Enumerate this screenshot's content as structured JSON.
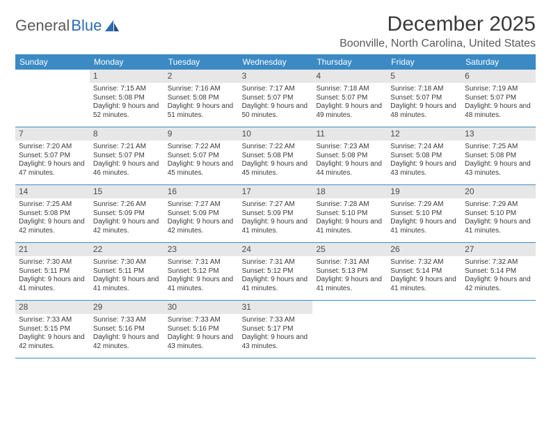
{
  "brand": {
    "part1": "General",
    "part2": "Blue"
  },
  "title": "December 2025",
  "location": "Boonville, North Carolina, United States",
  "colors": {
    "header_bg": "#3b8ac4",
    "header_fg": "#ffffff",
    "daynum_bg": "#e7e7e7",
    "rule": "#3b8ac4",
    "text": "#3a3a3a",
    "logo_gray": "#5a5a5a",
    "logo_blue": "#2d6bb0"
  },
  "daysOfWeek": [
    "Sunday",
    "Monday",
    "Tuesday",
    "Wednesday",
    "Thursday",
    "Friday",
    "Saturday"
  ],
  "weeks": [
    [
      {
        "num": "",
        "sunrise": "",
        "sunset": "",
        "daylight": ""
      },
      {
        "num": "1",
        "sunrise": "7:15 AM",
        "sunset": "5:08 PM",
        "daylight": "9 hours and 52 minutes."
      },
      {
        "num": "2",
        "sunrise": "7:16 AM",
        "sunset": "5:08 PM",
        "daylight": "9 hours and 51 minutes."
      },
      {
        "num": "3",
        "sunrise": "7:17 AM",
        "sunset": "5:07 PM",
        "daylight": "9 hours and 50 minutes."
      },
      {
        "num": "4",
        "sunrise": "7:18 AM",
        "sunset": "5:07 PM",
        "daylight": "9 hours and 49 minutes."
      },
      {
        "num": "5",
        "sunrise": "7:18 AM",
        "sunset": "5:07 PM",
        "daylight": "9 hours and 48 minutes."
      },
      {
        "num": "6",
        "sunrise": "7:19 AM",
        "sunset": "5:07 PM",
        "daylight": "9 hours and 48 minutes."
      }
    ],
    [
      {
        "num": "7",
        "sunrise": "7:20 AM",
        "sunset": "5:07 PM",
        "daylight": "9 hours and 47 minutes."
      },
      {
        "num": "8",
        "sunrise": "7:21 AM",
        "sunset": "5:07 PM",
        "daylight": "9 hours and 46 minutes."
      },
      {
        "num": "9",
        "sunrise": "7:22 AM",
        "sunset": "5:07 PM",
        "daylight": "9 hours and 45 minutes."
      },
      {
        "num": "10",
        "sunrise": "7:22 AM",
        "sunset": "5:08 PM",
        "daylight": "9 hours and 45 minutes."
      },
      {
        "num": "11",
        "sunrise": "7:23 AM",
        "sunset": "5:08 PM",
        "daylight": "9 hours and 44 minutes."
      },
      {
        "num": "12",
        "sunrise": "7:24 AM",
        "sunset": "5:08 PM",
        "daylight": "9 hours and 43 minutes."
      },
      {
        "num": "13",
        "sunrise": "7:25 AM",
        "sunset": "5:08 PM",
        "daylight": "9 hours and 43 minutes."
      }
    ],
    [
      {
        "num": "14",
        "sunrise": "7:25 AM",
        "sunset": "5:08 PM",
        "daylight": "9 hours and 42 minutes."
      },
      {
        "num": "15",
        "sunrise": "7:26 AM",
        "sunset": "5:09 PM",
        "daylight": "9 hours and 42 minutes."
      },
      {
        "num": "16",
        "sunrise": "7:27 AM",
        "sunset": "5:09 PM",
        "daylight": "9 hours and 42 minutes."
      },
      {
        "num": "17",
        "sunrise": "7:27 AM",
        "sunset": "5:09 PM",
        "daylight": "9 hours and 41 minutes."
      },
      {
        "num": "18",
        "sunrise": "7:28 AM",
        "sunset": "5:10 PM",
        "daylight": "9 hours and 41 minutes."
      },
      {
        "num": "19",
        "sunrise": "7:29 AM",
        "sunset": "5:10 PM",
        "daylight": "9 hours and 41 minutes."
      },
      {
        "num": "20",
        "sunrise": "7:29 AM",
        "sunset": "5:10 PM",
        "daylight": "9 hours and 41 minutes."
      }
    ],
    [
      {
        "num": "21",
        "sunrise": "7:30 AM",
        "sunset": "5:11 PM",
        "daylight": "9 hours and 41 minutes."
      },
      {
        "num": "22",
        "sunrise": "7:30 AM",
        "sunset": "5:11 PM",
        "daylight": "9 hours and 41 minutes."
      },
      {
        "num": "23",
        "sunrise": "7:31 AM",
        "sunset": "5:12 PM",
        "daylight": "9 hours and 41 minutes."
      },
      {
        "num": "24",
        "sunrise": "7:31 AM",
        "sunset": "5:12 PM",
        "daylight": "9 hours and 41 minutes."
      },
      {
        "num": "25",
        "sunrise": "7:31 AM",
        "sunset": "5:13 PM",
        "daylight": "9 hours and 41 minutes."
      },
      {
        "num": "26",
        "sunrise": "7:32 AM",
        "sunset": "5:14 PM",
        "daylight": "9 hours and 41 minutes."
      },
      {
        "num": "27",
        "sunrise": "7:32 AM",
        "sunset": "5:14 PM",
        "daylight": "9 hours and 42 minutes."
      }
    ],
    [
      {
        "num": "28",
        "sunrise": "7:33 AM",
        "sunset": "5:15 PM",
        "daylight": "9 hours and 42 minutes."
      },
      {
        "num": "29",
        "sunrise": "7:33 AM",
        "sunset": "5:16 PM",
        "daylight": "9 hours and 42 minutes."
      },
      {
        "num": "30",
        "sunrise": "7:33 AM",
        "sunset": "5:16 PM",
        "daylight": "9 hours and 43 minutes."
      },
      {
        "num": "31",
        "sunrise": "7:33 AM",
        "sunset": "5:17 PM",
        "daylight": "9 hours and 43 minutes."
      },
      {
        "num": "",
        "sunrise": "",
        "sunset": "",
        "daylight": ""
      },
      {
        "num": "",
        "sunrise": "",
        "sunset": "",
        "daylight": ""
      },
      {
        "num": "",
        "sunrise": "",
        "sunset": "",
        "daylight": ""
      }
    ]
  ],
  "labels": {
    "sunrise": "Sunrise: ",
    "sunset": "Sunset: ",
    "daylight": "Daylight: "
  }
}
